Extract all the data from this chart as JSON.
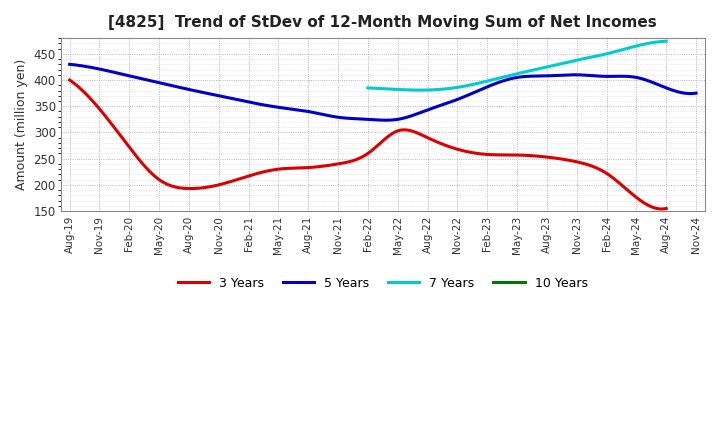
{
  "title": "[4825]  Trend of StDev of 12-Month Moving Sum of Net Incomes",
  "ylabel": "Amount (million yen)",
  "ylim": [
    150,
    480
  ],
  "yticks": [
    150,
    200,
    250,
    300,
    350,
    400,
    450
  ],
  "background_color": "#ffffff",
  "grid_color": "#999999",
  "x_labels": [
    "Aug-19",
    "Nov-19",
    "Feb-20",
    "May-20",
    "Aug-20",
    "Nov-20",
    "Feb-21",
    "May-21",
    "Aug-21",
    "Nov-21",
    "Feb-22",
    "May-22",
    "Aug-22",
    "Nov-22",
    "Feb-23",
    "May-23",
    "Aug-23",
    "Nov-23",
    "Feb-24",
    "May-24",
    "Aug-24",
    "Nov-24"
  ],
  "series": {
    "3yr": {
      "color": "#dd0000",
      "label": "3 Years",
      "x": [
        0,
        1,
        2,
        3,
        4,
        5,
        6,
        7,
        8,
        9,
        10,
        11,
        12,
        13,
        14,
        15,
        16,
        17,
        18,
        19,
        20
      ],
      "y": [
        400,
        345,
        272,
        210,
        193,
        200,
        217,
        230,
        233,
        240,
        260,
        303,
        290,
        268,
        258,
        257,
        253,
        244,
        222,
        176,
        155
      ]
    },
    "5yr": {
      "color": "#0000cc",
      "label": "5 Years",
      "x": [
        0,
        1,
        2,
        3,
        4,
        5,
        6,
        7,
        8,
        9,
        10,
        11,
        12,
        13,
        14,
        15,
        16,
        17,
        18,
        19,
        20,
        21
      ],
      "y": [
        430,
        421,
        408,
        395,
        382,
        370,
        358,
        348,
        340,
        329,
        325,
        325,
        343,
        363,
        387,
        405,
        408,
        410,
        407,
        405,
        385,
        375
      ]
    },
    "7yr": {
      "color": "#00cccc",
      "label": "7 Years",
      "x": [
        10,
        11,
        12,
        13,
        14,
        15,
        16,
        17,
        18,
        19,
        20
      ],
      "y": [
        385,
        382,
        381,
        386,
        398,
        412,
        425,
        438,
        450,
        465,
        474
      ]
    },
    "10yr": {
      "color": "#007700",
      "label": "10 Years",
      "x": [],
      "y": []
    }
  }
}
